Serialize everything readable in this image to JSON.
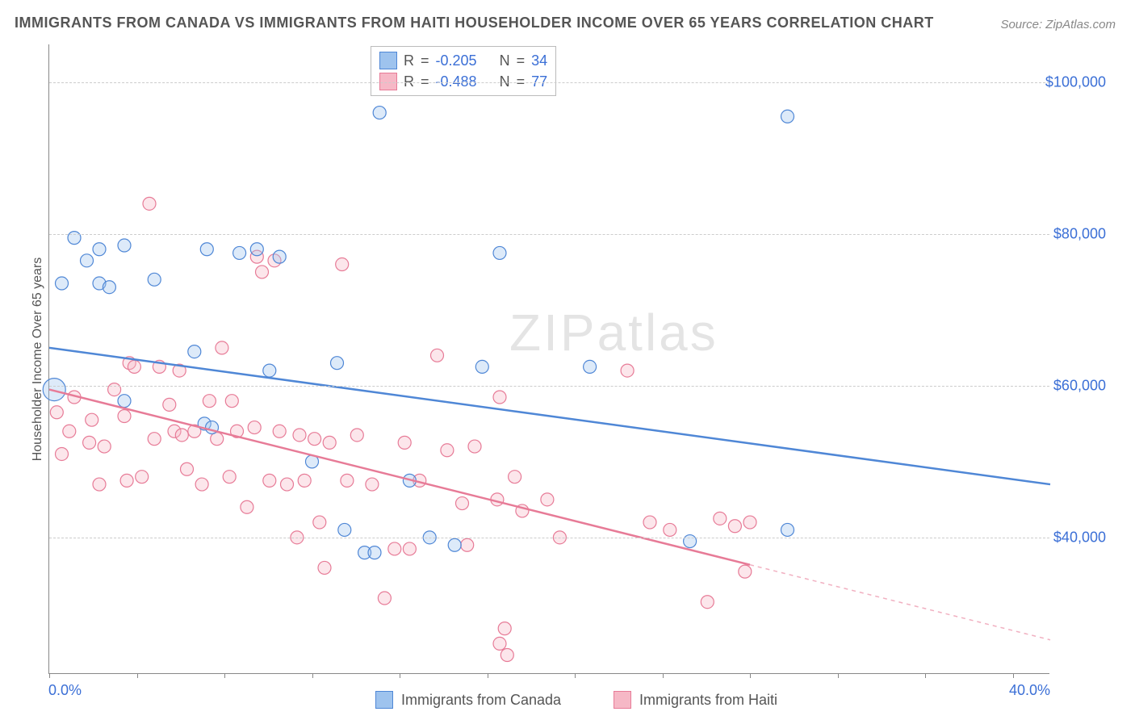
{
  "title": "IMMIGRANTS FROM CANADA VS IMMIGRANTS FROM HAITI HOUSEHOLDER INCOME OVER 65 YEARS CORRELATION CHART",
  "source": "Source: ZipAtlas.com",
  "ylabel": "Householder Income Over 65 years",
  "watermark": "ZIPatlas",
  "chart": {
    "type": "scatter",
    "xlim": [
      0,
      40
    ],
    "ylim": [
      22000,
      105000
    ],
    "x_tick_positions": [
      0,
      3.5,
      7,
      10.5,
      14,
      17.5,
      21,
      24.5,
      28,
      31.5,
      35,
      38.5
    ],
    "x_tick_labels_shown": {
      "0": "0.0%",
      "40": "40.0%"
    },
    "y_gridlines": [
      40000,
      60000,
      80000,
      100000
    ],
    "y_tick_labels": {
      "40000": "$40,000",
      "60000": "$60,000",
      "80000": "$80,000",
      "100000": "$100,000"
    },
    "grid_color": "#cccccc",
    "background_color": "#ffffff",
    "axis_color": "#888888",
    "tick_label_color": "#3b6fd6",
    "label_color": "#555555",
    "point_radius": 8
  },
  "series": {
    "canada": {
      "label": "Immigrants from Canada",
      "fill": "#9ec3ee",
      "stroke": "#4f87d6",
      "R": "-0.205",
      "N": "34",
      "trend": {
        "x1": 0,
        "y1": 65000,
        "x2": 40,
        "y2": 47000,
        "solid_until_x": 40
      },
      "points": [
        [
          0.2,
          59500,
          14
        ],
        [
          0.5,
          73500,
          8
        ],
        [
          1.0,
          79500,
          8
        ],
        [
          1.5,
          76500,
          8
        ],
        [
          2.0,
          78000,
          8
        ],
        [
          2.0,
          73500,
          8
        ],
        [
          2.4,
          73000,
          8
        ],
        [
          3.0,
          58000,
          8
        ],
        [
          3.0,
          78500,
          8
        ],
        [
          4.2,
          74000,
          8
        ],
        [
          5.8,
          64500,
          8
        ],
        [
          6.2,
          55000,
          8
        ],
        [
          6.3,
          78000,
          8
        ],
        [
          6.5,
          54500,
          8
        ],
        [
          7.6,
          77500,
          8
        ],
        [
          8.3,
          78000,
          8
        ],
        [
          8.8,
          62000,
          8
        ],
        [
          9.2,
          77000,
          8
        ],
        [
          10.5,
          50000,
          8
        ],
        [
          11.5,
          63000,
          8
        ],
        [
          11.8,
          41000,
          8
        ],
        [
          12.6,
          38000,
          8
        ],
        [
          13.0,
          38000,
          8
        ],
        [
          13.2,
          96000,
          8
        ],
        [
          14.4,
          47500,
          8
        ],
        [
          15.2,
          40000,
          8
        ],
        [
          16.2,
          39000,
          8
        ],
        [
          17.3,
          62500,
          8
        ],
        [
          18.0,
          77500,
          8
        ],
        [
          21.6,
          62500,
          8
        ],
        [
          25.6,
          39500,
          8
        ],
        [
          29.5,
          95500,
          8
        ],
        [
          29.5,
          41000,
          8
        ]
      ]
    },
    "haiti": {
      "label": "Immigrants from Haiti",
      "fill": "#f6b8c6",
      "stroke": "#e77b97",
      "R": "-0.488",
      "N": "77",
      "trend": {
        "x1": 0,
        "y1": 59500,
        "x2": 40,
        "y2": 26500,
        "solid_until_x": 28
      },
      "points": [
        [
          0.3,
          56500,
          8
        ],
        [
          0.5,
          51000,
          8
        ],
        [
          0.8,
          54000,
          8
        ],
        [
          1.0,
          58500,
          8
        ],
        [
          1.6,
          52500,
          8
        ],
        [
          1.7,
          55500,
          8
        ],
        [
          2.0,
          47000,
          8
        ],
        [
          2.2,
          52000,
          8
        ],
        [
          2.6,
          59500,
          8
        ],
        [
          3.0,
          56000,
          8
        ],
        [
          3.1,
          47500,
          8
        ],
        [
          3.2,
          63000,
          8
        ],
        [
          3.4,
          62500,
          8
        ],
        [
          3.7,
          48000,
          8
        ],
        [
          4.0,
          84000,
          8
        ],
        [
          4.2,
          53000,
          8
        ],
        [
          4.4,
          62500,
          8
        ],
        [
          4.8,
          57500,
          8
        ],
        [
          5.0,
          54000,
          8
        ],
        [
          5.2,
          62000,
          8
        ],
        [
          5.3,
          53500,
          8
        ],
        [
          5.5,
          49000,
          8
        ],
        [
          5.8,
          54000,
          8
        ],
        [
          6.1,
          47000,
          8
        ],
        [
          6.4,
          58000,
          8
        ],
        [
          6.7,
          53000,
          8
        ],
        [
          6.9,
          65000,
          8
        ],
        [
          7.2,
          48000,
          8
        ],
        [
          7.3,
          58000,
          8
        ],
        [
          7.5,
          54000,
          8
        ],
        [
          7.9,
          44000,
          8
        ],
        [
          8.2,
          54500,
          8
        ],
        [
          8.3,
          77000,
          8
        ],
        [
          8.5,
          75000,
          8
        ],
        [
          8.8,
          47500,
          8
        ],
        [
          9.0,
          76500,
          8
        ],
        [
          9.2,
          54000,
          8
        ],
        [
          9.5,
          47000,
          8
        ],
        [
          9.9,
          40000,
          8
        ],
        [
          10.0,
          53500,
          8
        ],
        [
          10.2,
          47500,
          8
        ],
        [
          10.6,
          53000,
          8
        ],
        [
          10.8,
          42000,
          8
        ],
        [
          11.0,
          36000,
          8
        ],
        [
          11.2,
          52500,
          8
        ],
        [
          11.7,
          76000,
          8
        ],
        [
          11.9,
          47500,
          8
        ],
        [
          12.3,
          53500,
          8
        ],
        [
          12.9,
          47000,
          8
        ],
        [
          13.4,
          32000,
          8
        ],
        [
          13.8,
          38500,
          8
        ],
        [
          14.2,
          52500,
          8
        ],
        [
          14.4,
          38500,
          8
        ],
        [
          14.8,
          47500,
          8
        ],
        [
          15.5,
          64000,
          8
        ],
        [
          15.9,
          51500,
          8
        ],
        [
          16.5,
          44500,
          8
        ],
        [
          16.7,
          39000,
          8
        ],
        [
          17.0,
          52000,
          8
        ],
        [
          17.9,
          45000,
          8
        ],
        [
          18.0,
          58500,
          8
        ],
        [
          18.0,
          26000,
          8
        ],
        [
          18.2,
          28000,
          8
        ],
        [
          18.3,
          24500,
          8
        ],
        [
          18.6,
          48000,
          8
        ],
        [
          18.9,
          43500,
          8
        ],
        [
          19.9,
          45000,
          8
        ],
        [
          20.4,
          40000,
          8
        ],
        [
          23.1,
          62000,
          8
        ],
        [
          24.0,
          42000,
          8
        ],
        [
          24.8,
          41000,
          8
        ],
        [
          26.3,
          31500,
          8
        ],
        [
          26.8,
          42500,
          8
        ],
        [
          27.4,
          41500,
          8
        ],
        [
          27.8,
          35500,
          8
        ],
        [
          28.0,
          42000,
          8
        ]
      ]
    }
  },
  "legend_bottom": [
    {
      "key": "canada"
    },
    {
      "key": "haiti"
    }
  ]
}
